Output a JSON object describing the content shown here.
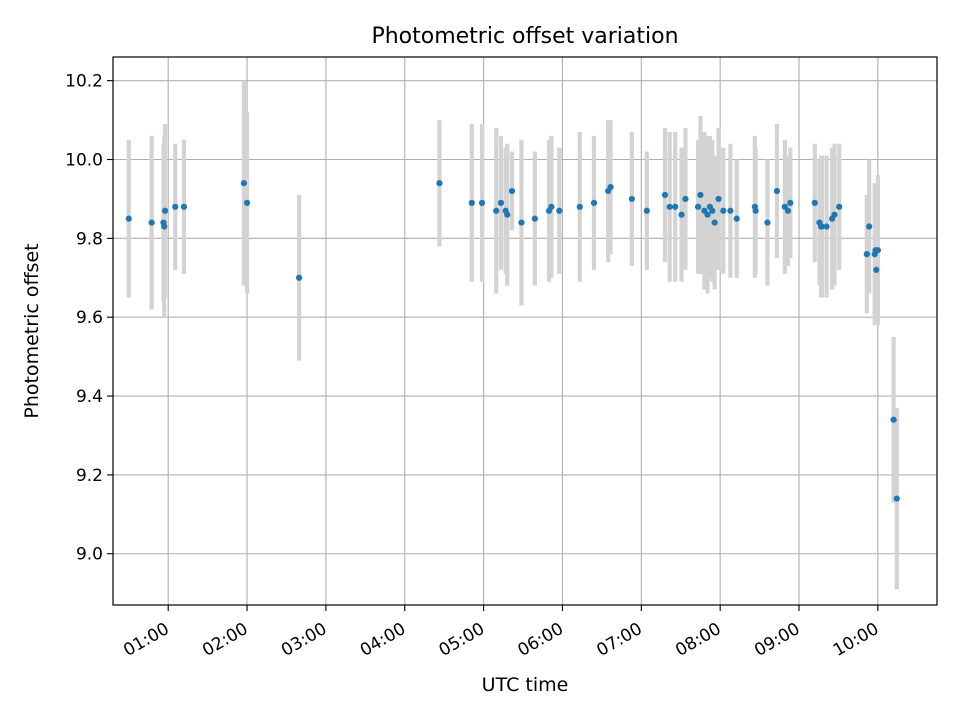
{
  "chart_data": {
    "type": "scatter",
    "title": "Photometric offset variation",
    "xlabel": "UTC time",
    "ylabel": "Photometric offset",
    "x_tick_labels": [
      "01:00",
      "02:00",
      "03:00",
      "04:00",
      "05:00",
      "06:00",
      "07:00",
      "08:00",
      "09:00",
      "10:00"
    ],
    "y_tick_labels": [
      "9.0",
      "9.2",
      "9.4",
      "9.6",
      "9.8",
      "10.0",
      "10.2"
    ],
    "xlim_hours": [
      0.3,
      10.75
    ],
    "ylim": [
      8.87,
      10.26
    ],
    "grid": true,
    "colors": {
      "point": "#1f77b4",
      "errorbar": "#d3d3d3",
      "grid": "#b0b0b0"
    },
    "series": [
      {
        "x_utc_hours": [
          0.5,
          0.79,
          0.94,
          0.95,
          0.96,
          1.09,
          1.2,
          1.96,
          2.0,
          2.66,
          4.44,
          4.85,
          4.98,
          5.16,
          5.22,
          5.28,
          5.3,
          5.36,
          5.48,
          5.65,
          5.83,
          5.86,
          5.96,
          6.22,
          6.4,
          6.58,
          6.61,
          6.88,
          7.07,
          7.3,
          7.36,
          7.43,
          7.51,
          7.56,
          7.72,
          7.75,
          7.8,
          7.84,
          7.87,
          7.9,
          7.93,
          7.98,
          8.04,
          8.13,
          8.21,
          8.44,
          8.45,
          8.6,
          8.72,
          8.82,
          8.86,
          8.89,
          9.2,
          9.26,
          9.28,
          9.29,
          9.35,
          9.42,
          9.45,
          9.51,
          9.86,
          9.89,
          9.96,
          9.97,
          9.98,
          10.0,
          10.2,
          10.24
        ],
        "y": [
          9.85,
          9.84,
          9.84,
          9.83,
          9.87,
          9.88,
          9.88,
          9.94,
          9.89,
          9.7,
          9.94,
          9.89,
          9.89,
          9.87,
          9.89,
          9.87,
          9.86,
          9.92,
          9.84,
          9.85,
          9.87,
          9.88,
          9.87,
          9.88,
          9.89,
          9.92,
          9.93,
          9.9,
          9.87,
          9.91,
          9.88,
          9.88,
          9.86,
          9.9,
          9.88,
          9.91,
          9.87,
          9.86,
          9.88,
          9.87,
          9.84,
          9.9,
          9.87,
          9.87,
          9.85,
          9.88,
          9.87,
          9.84,
          9.92,
          9.88,
          9.87,
          9.89,
          9.89,
          9.84,
          9.83,
          9.83,
          9.83,
          9.85,
          9.86,
          9.88,
          9.76,
          9.83,
          9.76,
          9.77,
          9.72,
          9.77,
          9.34,
          9.14
        ],
        "yerr": [
          0.2,
          0.22,
          0.2,
          0.23,
          0.22,
          0.16,
          0.17,
          0.26,
          0.23,
          0.21,
          0.16,
          0.2,
          0.2,
          0.21,
          0.17,
          0.16,
          0.18,
          0.1,
          0.21,
          0.17,
          0.18,
          0.18,
          0.16,
          0.19,
          0.17,
          0.18,
          0.17,
          0.17,
          0.15,
          0.17,
          0.19,
          0.19,
          0.17,
          0.18,
          0.17,
          0.2,
          0.2,
          0.2,
          0.18,
          0.18,
          0.17,
          0.18,
          0.16,
          0.17,
          0.15,
          0.18,
          0.16,
          0.16,
          0.17,
          0.17,
          0.14,
          0.14,
          0.15,
          0.16,
          0.18,
          0.18,
          0.18,
          0.18,
          0.18,
          0.16,
          0.15,
          0.17,
          0.18,
          0.16,
          0.14,
          0.19,
          0.21,
          0.23
        ]
      }
    ]
  }
}
